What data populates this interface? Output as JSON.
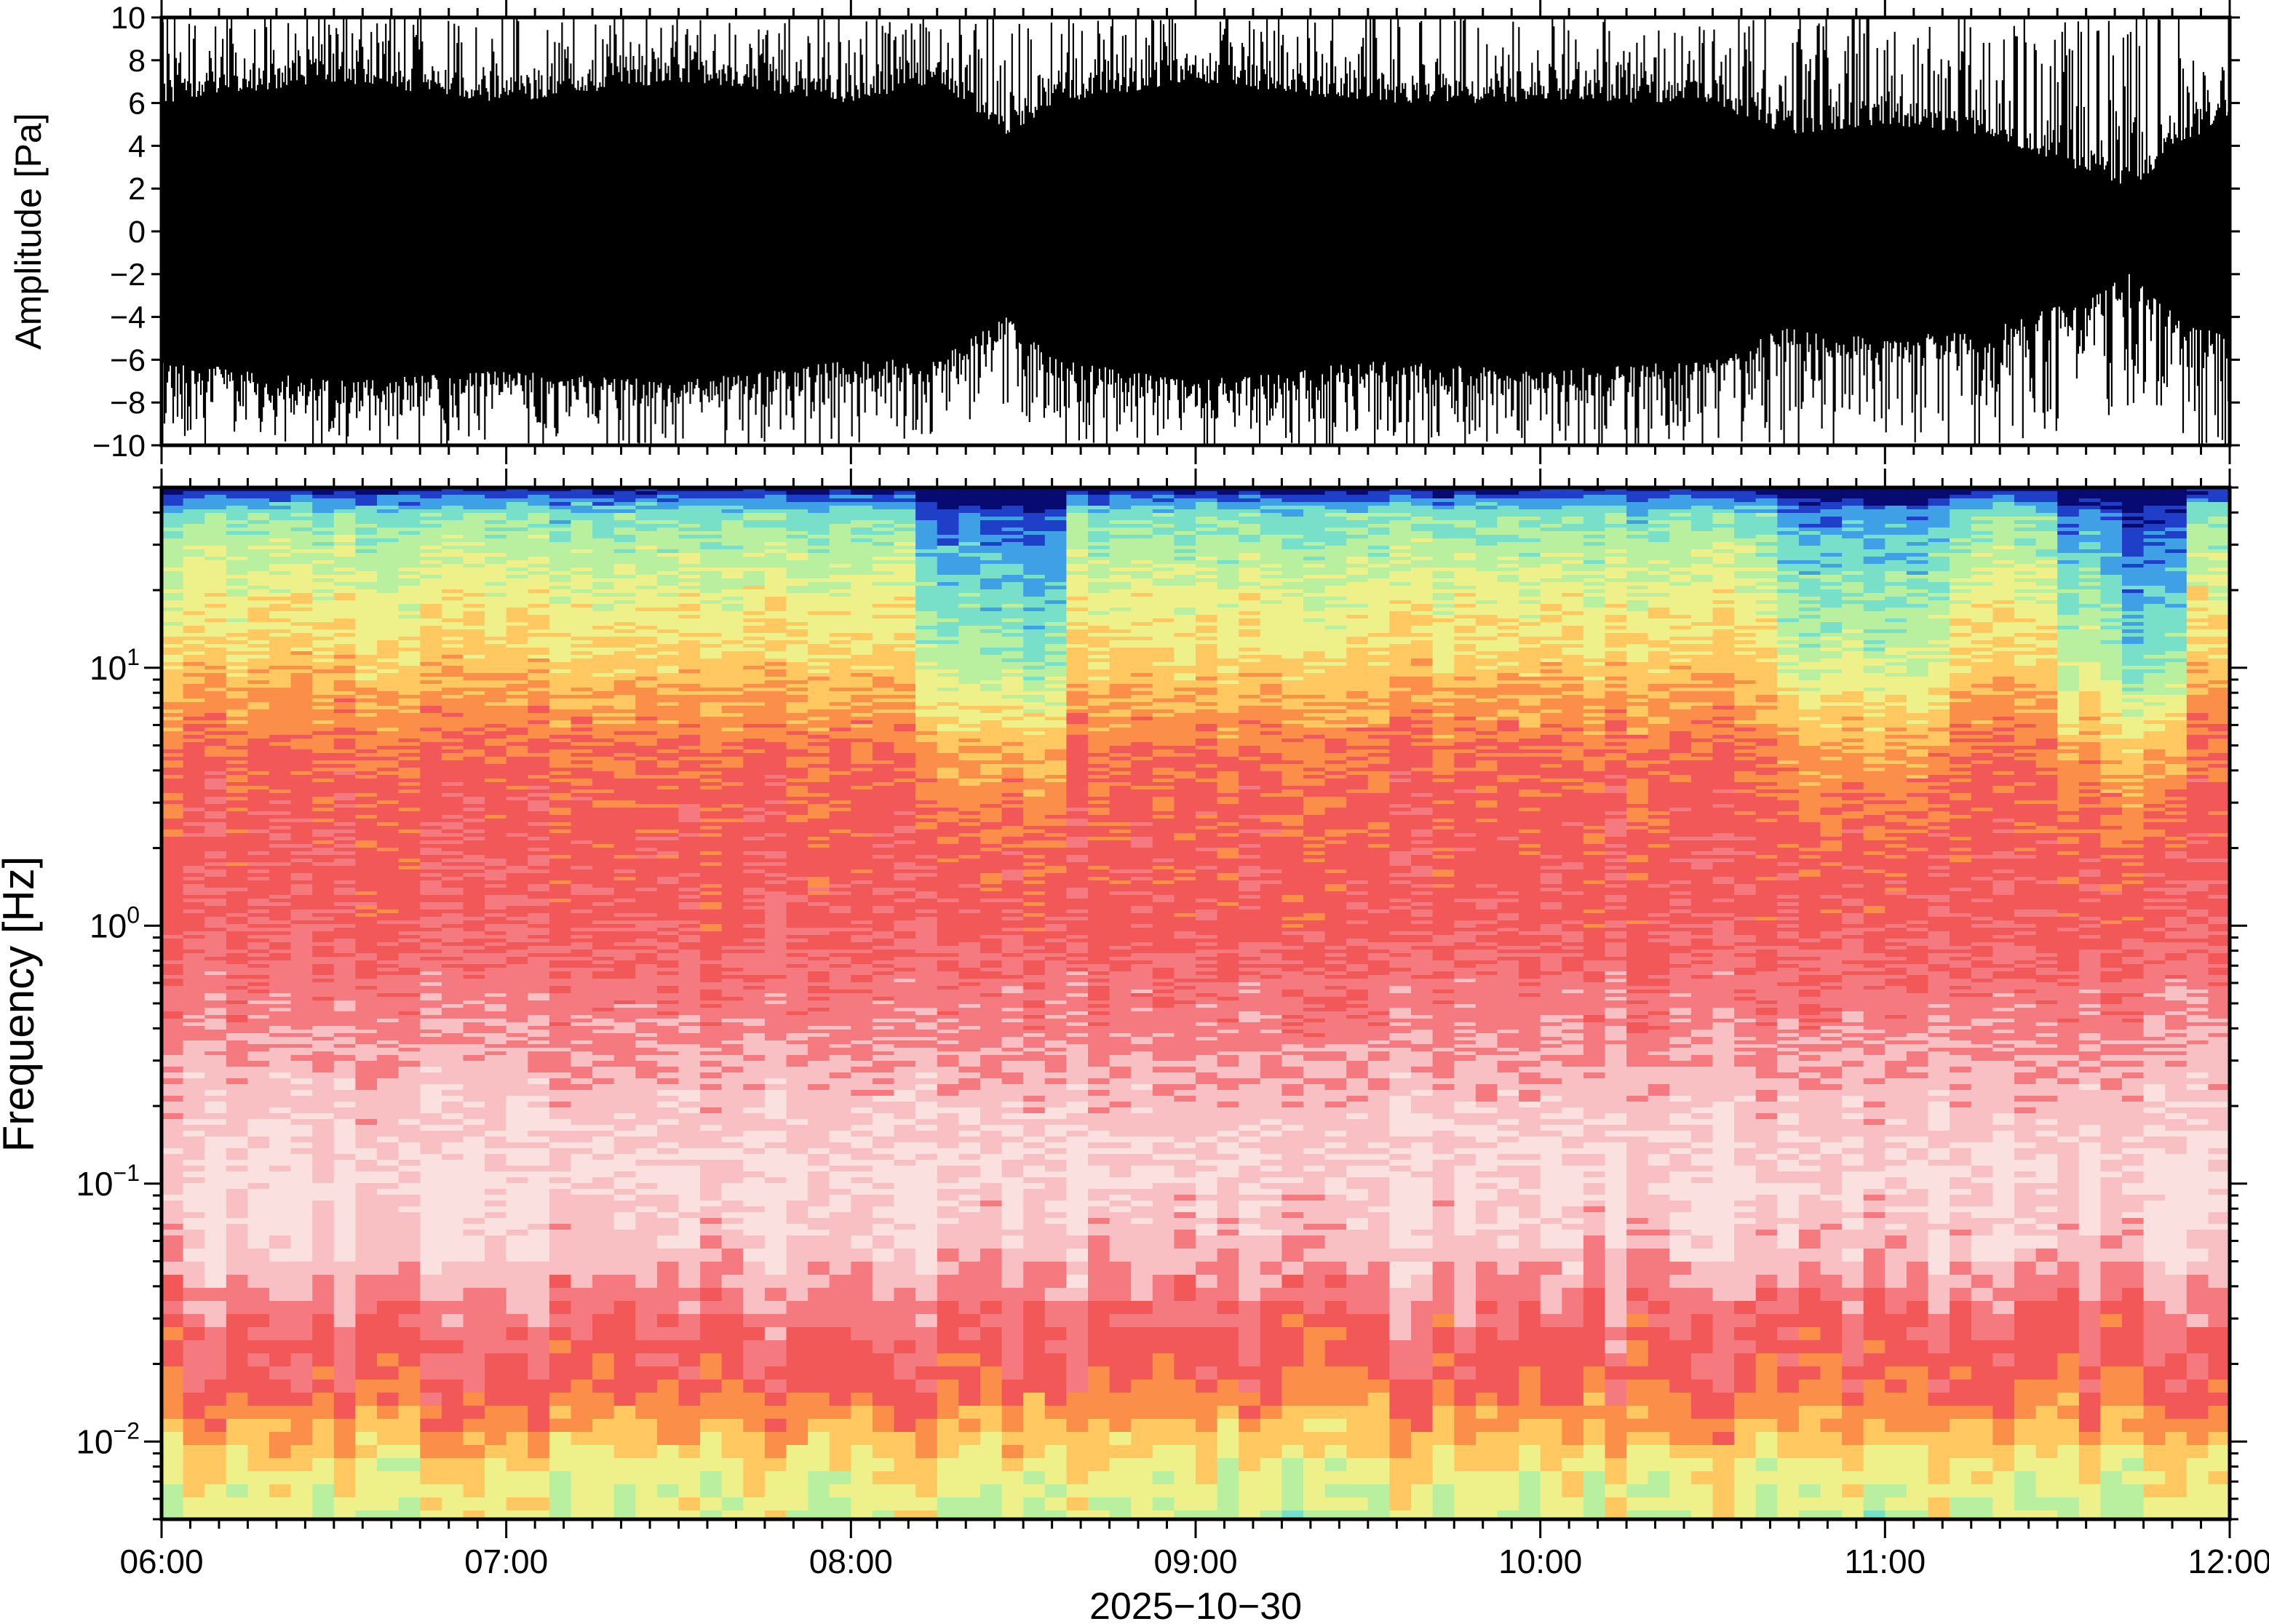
{
  "chart_data": [
    {
      "type": "line",
      "panel": "waveform",
      "ylabel": "Amplitude [Pa]",
      "ylim": [
        -10,
        10
      ],
      "yticks": [
        "10",
        "8",
        "6",
        "4",
        "2",
        "0",
        "−2",
        "−4",
        "−6",
        "−8",
        "−10"
      ],
      "xlim": [
        "06:00",
        "12:00"
      ],
      "color": "#000000",
      "x_hours": [
        6.0,
        6.5,
        7.0,
        7.5,
        8.0,
        8.25,
        8.45,
        8.6,
        9.0,
        9.5,
        10.0,
        10.5,
        10.7,
        11.0,
        11.3,
        11.6,
        11.72,
        11.85,
        12.0
      ],
      "envelope_max": [
        10,
        10,
        10,
        10,
        10,
        10,
        10,
        10,
        10,
        10,
        10,
        10,
        10,
        10,
        10,
        10,
        10,
        10,
        10
      ],
      "envelope_typ_pos": [
        6,
        7,
        6,
        7,
        6,
        7,
        4.5,
        6,
        7,
        6,
        6,
        6,
        4.5,
        5,
        4.5,
        2.5,
        2,
        4,
        5
      ],
      "envelope_typ_neg": [
        -6,
        -7,
        -6.5,
        -7,
        -6,
        -6,
        -4,
        -6,
        -7,
        -6,
        -6.5,
        -6,
        -4.5,
        -5,
        -4.5,
        -3,
        -1.8,
        -4,
        -5
      ],
      "envelope_min": [
        -10,
        -10,
        -10,
        -10,
        -10,
        -9.5,
        -8,
        -10,
        -10,
        -10,
        -10,
        -10,
        -10,
        -10,
        -10,
        -9,
        -8,
        -10,
        -10
      ]
    },
    {
      "type": "heatmap",
      "panel": "spectrogram",
      "ylabel": "Frequency [Hz]",
      "yscale": "log",
      "ylim": [
        0.005,
        50
      ],
      "yticks": [
        {
          "value": 10,
          "base": "10",
          "exp": "1"
        },
        {
          "value": 1,
          "base": "10",
          "exp": "0"
        },
        {
          "value": 0.1,
          "base": "10",
          "exp": "−1"
        },
        {
          "value": 0.01,
          "base": "10",
          "exp": "−2"
        }
      ],
      "xlim": [
        "06:00",
        "12:00"
      ],
      "xticks": [
        "06:00",
        "07:00",
        "08:00",
        "09:00",
        "10:00",
        "11:00",
        "12:00"
      ],
      "xlabel": "2025−10−30",
      "colormap": [
        "#070a70",
        "#1f3fc8",
        "#3fa0e6",
        "#78e0c8",
        "#b8f0a0",
        "#eef08a",
        "#ffc860",
        "#fb8f4a",
        "#f25858",
        "#f47a80",
        "#f9c0c4",
        "#fbe0e0"
      ],
      "level_profile": {
        "frequency_hz": [
          0.005,
          0.008,
          0.012,
          0.018,
          0.03,
          0.06,
          0.1,
          0.2,
          0.4,
          1,
          2,
          3,
          5,
          8,
          12,
          20,
          30,
          40,
          46,
          50
        ],
        "level_index": [
          4.6,
          5.2,
          6.6,
          8,
          8.6,
          10.3,
          10.8,
          10.2,
          9.3,
          8.3,
          8.1,
          8,
          7.5,
          6.6,
          5.6,
          4.9,
          4,
          3.2,
          1.6,
          0.2
        ]
      },
      "quiet_intervals": [
        {
          "start": "08:12",
          "end": "08:27",
          "shift": 1.8
        },
        {
          "start": "08:27",
          "end": "08:36",
          "shift": 2.2
        },
        {
          "start": "10:42",
          "end": "11:10",
          "shift": 1.3
        },
        {
          "start": "11:30",
          "end": "11:40",
          "shift": 1.5
        },
        {
          "start": "11:40",
          "end": "11:52",
          "shift": 2.6
        }
      ]
    }
  ]
}
